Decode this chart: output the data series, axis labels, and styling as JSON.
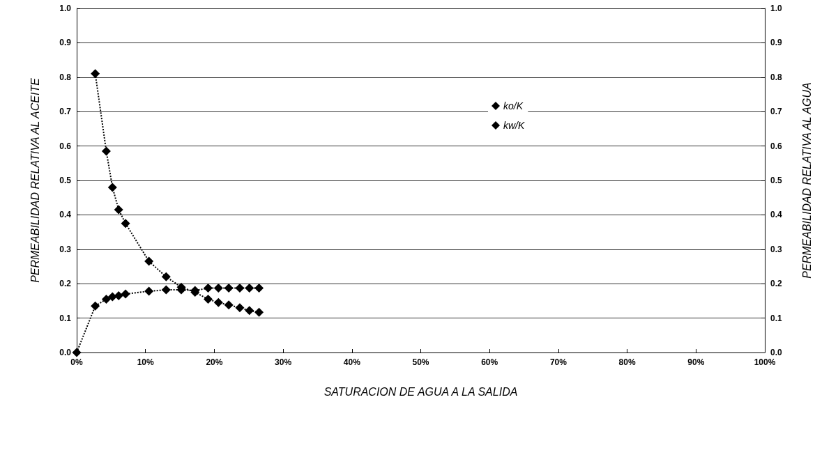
{
  "chart_data": {
    "type": "line",
    "xlabel": "SATURACION DE AGUA A LA SALIDA",
    "ylabel": "PERMEABILIDAD RELATIVA AL ACEITE",
    "y2label": "PERMEABILIDAD RELATIVA AL AGUA",
    "series": [
      {
        "name": "ko/K",
        "color": "#000000",
        "x": [
          2.7,
          4.3,
          5.2,
          6.1,
          7.1,
          10.5,
          13,
          15.2,
          17.2,
          19.1,
          20.6,
          22.1,
          23.7,
          25.1,
          26.5
        ],
        "values": [
          0.81,
          0.585,
          0.48,
          0.415,
          0.375,
          0.265,
          0.22,
          0.19,
          0.175,
          0.155,
          0.145,
          0.138,
          0.13,
          0.122,
          0.117
        ]
      },
      {
        "name": "kw/K",
        "color": "#000000",
        "x": [
          0,
          2.7,
          4.3,
          5.2,
          6.1,
          7.1,
          10.5,
          13,
          15.2,
          17.2,
          19.1,
          20.6,
          22.1,
          23.7,
          25.1,
          26.5
        ],
        "values": [
          0,
          0.135,
          0.155,
          0.162,
          0.165,
          0.17,
          0.178,
          0.182,
          0.182,
          0.18,
          0.187,
          0.187,
          0.187,
          0.187,
          0.187,
          0.187
        ]
      }
    ],
    "xlim": [
      0,
      100
    ],
    "xticks": [
      {
        "value": 0,
        "label": "0%"
      },
      {
        "value": 10,
        "label": "10%"
      },
      {
        "value": 20,
        "label": "20%"
      },
      {
        "value": 30,
        "label": "30%"
      },
      {
        "value": 40,
        "label": "40%"
      },
      {
        "value": 50,
        "label": "50%"
      },
      {
        "value": 60,
        "label": "60%"
      },
      {
        "value": 70,
        "label": "70%"
      },
      {
        "value": 80,
        "label": "80%"
      },
      {
        "value": 90,
        "label": "90%"
      },
      {
        "value": 100,
        "label": "100%"
      }
    ],
    "ylim": [
      0,
      1
    ],
    "yticks": [
      {
        "value": 0,
        "label": "0.0"
      },
      {
        "value": 0.1,
        "label": "0.1"
      },
      {
        "value": 0.2,
        "label": "0.2"
      },
      {
        "value": 0.3,
        "label": "0.3"
      },
      {
        "value": 0.4,
        "label": "0.4"
      },
      {
        "value": 0.5,
        "label": "0.5"
      },
      {
        "value": 0.6,
        "label": "0.6"
      },
      {
        "value": 0.7,
        "label": "0.7"
      },
      {
        "value": 0.8,
        "label": "0.8"
      },
      {
        "value": 0.9,
        "label": "0.9"
      },
      {
        "value": 1,
        "label": "1.0"
      }
    ],
    "y2lim": [
      0,
      1
    ],
    "y2ticks": [
      {
        "value": 0,
        "label": "0.0"
      },
      {
        "value": 0.1,
        "label": "0.1"
      },
      {
        "value": 0.2,
        "label": "0.2"
      },
      {
        "value": 0.3,
        "label": "0.3"
      },
      {
        "value": 0.4,
        "label": "0.4"
      },
      {
        "value": 0.5,
        "label": "0.5"
      },
      {
        "value": 0.6,
        "label": "0.6"
      },
      {
        "value": 0.7,
        "label": "0.7"
      },
      {
        "value": 0.8,
        "label": "0.8"
      },
      {
        "value": 0.9,
        "label": "0.9"
      },
      {
        "value": 1,
        "label": "1.0"
      }
    ],
    "grid": "y",
    "legend": "top right",
    "marker": "diamond",
    "line_style": "dotted"
  }
}
